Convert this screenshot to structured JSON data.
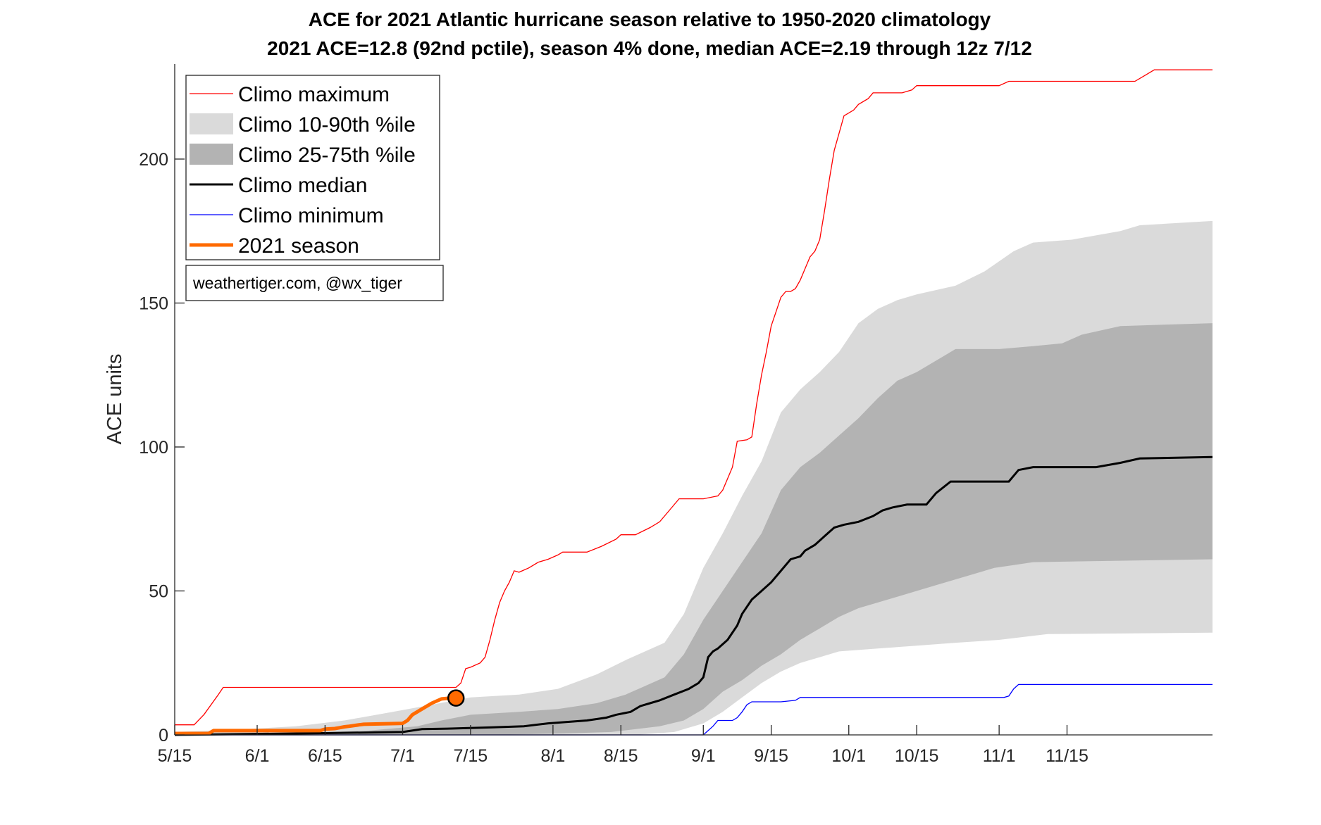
{
  "chart_data": {
    "type": "area",
    "title": "ACE for 2021 Atlantic hurricane season relative to 1950-2020 climatology",
    "subtitle": "2021 ACE=12.8 (92nd pctile), season 4% done, median ACE=2.19 through 12z 7/12",
    "xlabel": "",
    "ylabel": "ACE units",
    "xlim": [
      135,
      349
    ],
    "ylim": [
      0,
      233
    ],
    "x_ticks": [
      {
        "day": 135,
        "label": "5/15"
      },
      {
        "day": 152,
        "label": "6/1"
      },
      {
        "day": 166,
        "label": "6/15"
      },
      {
        "day": 182,
        "label": "7/1"
      },
      {
        "day": 196,
        "label": "7/15"
      },
      {
        "day": 213,
        "label": "8/1"
      },
      {
        "day": 227,
        "label": "8/15"
      },
      {
        "day": 244,
        "label": "9/1"
      },
      {
        "day": 258,
        "label": "9/15"
      },
      {
        "day": 274,
        "label": "10/1"
      },
      {
        "day": 288,
        "label": "10/15"
      },
      {
        "day": 305,
        "label": "11/1"
      },
      {
        "day": 319,
        "label": "11/15"
      }
    ],
    "y_ticks": [
      0,
      50,
      100,
      150,
      200
    ],
    "legend_position": "top-left",
    "credit": "weathertiger.com, @wx_tiger",
    "series": [
      {
        "name": "Climo maximum",
        "style": "line",
        "color": "#ff0000",
        "points": [
          [
            135,
            3.5
          ],
          [
            139,
            3.5
          ],
          [
            141,
            7
          ],
          [
            144,
            14
          ],
          [
            145,
            16.5
          ],
          [
            154,
            16.5
          ],
          [
            170,
            16.5
          ],
          [
            185,
            16.5
          ],
          [
            193,
            16.5
          ],
          [
            194,
            18
          ],
          [
            195,
            23
          ],
          [
            196,
            23.5
          ],
          [
            198,
            25
          ],
          [
            199,
            27
          ],
          [
            200,
            33
          ],
          [
            201,
            40
          ],
          [
            202,
            46
          ],
          [
            203,
            50
          ],
          [
            204,
            53
          ],
          [
            205,
            57
          ],
          [
            206,
            56.5
          ],
          [
            208,
            58
          ],
          [
            210,
            60
          ],
          [
            212,
            61
          ],
          [
            214,
            62.5
          ],
          [
            215,
            63.5
          ],
          [
            220,
            63.5
          ],
          [
            223,
            65.5
          ],
          [
            226,
            68
          ],
          [
            227,
            69.5
          ],
          [
            230,
            69.5
          ],
          [
            233,
            72
          ],
          [
            235,
            74
          ],
          [
            237,
            78
          ],
          [
            239,
            82
          ],
          [
            244,
            82
          ],
          [
            247,
            83
          ],
          [
            248,
            85
          ],
          [
            249,
            89
          ],
          [
            250,
            93
          ],
          [
            251,
            102
          ],
          [
            253,
            102.5
          ],
          [
            254,
            103.5
          ],
          [
            255,
            115
          ],
          [
            256,
            125
          ],
          [
            257,
            133
          ],
          [
            258,
            142
          ],
          [
            259,
            147
          ],
          [
            260,
            152
          ],
          [
            261,
            154
          ],
          [
            262,
            154
          ],
          [
            263,
            155
          ],
          [
            264,
            158
          ],
          [
            265,
            162
          ],
          [
            266,
            166
          ],
          [
            267,
            168
          ],
          [
            268,
            172
          ],
          [
            269,
            182
          ],
          [
            270,
            193
          ],
          [
            271,
            203
          ],
          [
            272,
            209
          ],
          [
            273,
            215
          ],
          [
            275,
            217
          ],
          [
            276,
            219
          ],
          [
            278,
            221
          ],
          [
            279,
            223
          ],
          [
            285,
            223
          ],
          [
            287,
            224
          ],
          [
            288,
            225.5
          ],
          [
            300,
            225.5
          ],
          [
            305,
            225.5
          ],
          [
            307,
            227
          ],
          [
            330,
            227
          ],
          [
            333,
            227
          ],
          [
            335,
            229
          ],
          [
            337,
            231
          ],
          [
            349,
            231
          ]
        ]
      },
      {
        "name": "Climo minimum",
        "style": "line",
        "color": "#0000ff",
        "points": [
          [
            135,
            0
          ],
          [
            244,
            0
          ],
          [
            245,
            1.5
          ],
          [
            246,
            3
          ],
          [
            247,
            5
          ],
          [
            250,
            5
          ],
          [
            251,
            6
          ],
          [
            252,
            8
          ],
          [
            253,
            10.5
          ],
          [
            254,
            11.5
          ],
          [
            260,
            11.5
          ],
          [
            263,
            12
          ],
          [
            264,
            13
          ],
          [
            300,
            13
          ],
          [
            306,
            13
          ],
          [
            307,
            13.5
          ],
          [
            308,
            16
          ],
          [
            309,
            17.5
          ],
          [
            349,
            17.5
          ]
        ]
      },
      {
        "name": "Climo median",
        "style": "line",
        "color": "#000000",
        "points": [
          [
            135,
            0
          ],
          [
            150,
            0.3
          ],
          [
            166,
            0.6
          ],
          [
            182,
            1
          ],
          [
            186,
            2
          ],
          [
            192,
            2.2
          ],
          [
            200,
            2.6
          ],
          [
            207,
            3
          ],
          [
            212,
            4
          ],
          [
            220,
            5
          ],
          [
            224,
            6
          ],
          [
            226,
            7
          ],
          [
            229,
            8
          ],
          [
            231,
            10
          ],
          [
            233,
            11
          ],
          [
            235,
            12
          ],
          [
            238,
            14
          ],
          [
            241,
            16
          ],
          [
            243,
            18
          ],
          [
            244,
            20
          ],
          [
            245,
            27
          ],
          [
            246,
            29
          ],
          [
            247,
            30
          ],
          [
            249,
            33
          ],
          [
            251,
            38
          ],
          [
            252,
            42
          ],
          [
            254,
            47
          ],
          [
            256,
            50
          ],
          [
            258,
            53
          ],
          [
            260,
            57
          ],
          [
            262,
            61
          ],
          [
            264,
            62
          ],
          [
            265,
            64
          ],
          [
            267,
            66
          ],
          [
            269,
            69
          ],
          [
            271,
            72
          ],
          [
            273,
            73
          ],
          [
            276,
            74
          ],
          [
            279,
            76
          ],
          [
            281,
            78
          ],
          [
            283,
            79
          ],
          [
            286,
            80
          ],
          [
            290,
            80
          ],
          [
            292,
            84
          ],
          [
            295,
            88
          ],
          [
            300,
            88
          ],
          [
            305,
            88
          ],
          [
            307,
            88
          ],
          [
            309,
            92
          ],
          [
            312,
            93
          ],
          [
            325,
            93
          ],
          [
            330,
            94.5
          ],
          [
            334,
            96
          ],
          [
            349,
            96.5
          ]
        ]
      },
      {
        "name": "Climo 10-90th %ile",
        "style": "band",
        "color": "#dadada",
        "lower": [
          [
            135,
            0
          ],
          [
            230,
            0
          ],
          [
            238,
            1
          ],
          [
            244,
            4
          ],
          [
            248,
            8
          ],
          [
            252,
            13
          ],
          [
            256,
            18
          ],
          [
            260,
            22
          ],
          [
            264,
            25
          ],
          [
            268,
            27
          ],
          [
            272,
            29
          ],
          [
            280,
            30
          ],
          [
            288,
            31
          ],
          [
            296,
            32
          ],
          [
            305,
            33
          ],
          [
            315,
            35
          ],
          [
            349,
            35.5
          ]
        ],
        "upper": [
          [
            135,
            1
          ],
          [
            150,
            2
          ],
          [
            160,
            3
          ],
          [
            170,
            5
          ],
          [
            180,
            8
          ],
          [
            188,
            10.5
          ],
          [
            196,
            13
          ],
          [
            206,
            14
          ],
          [
            214,
            16
          ],
          [
            222,
            21
          ],
          [
            228,
            26
          ],
          [
            232,
            29
          ],
          [
            236,
            32
          ],
          [
            240,
            42
          ],
          [
            244,
            58
          ],
          [
            248,
            70
          ],
          [
            252,
            83
          ],
          [
            256,
            95
          ],
          [
            260,
            112
          ],
          [
            264,
            120
          ],
          [
            268,
            126
          ],
          [
            272,
            133
          ],
          [
            276,
            143
          ],
          [
            280,
            148
          ],
          [
            284,
            151
          ],
          [
            288,
            153
          ],
          [
            296,
            156
          ],
          [
            302,
            161
          ],
          [
            308,
            168
          ],
          [
            312,
            171
          ],
          [
            320,
            172
          ],
          [
            330,
            175
          ],
          [
            334,
            177
          ],
          [
            349,
            178.5
          ]
        ]
      },
      {
        "name": "Climo 25-75th %ile",
        "style": "band",
        "color": "#b3b3b3",
        "lower": [
          [
            135,
            0
          ],
          [
            200,
            0
          ],
          [
            215,
            0.5
          ],
          [
            225,
            1
          ],
          [
            235,
            3
          ],
          [
            240,
            5
          ],
          [
            244,
            9
          ],
          [
            248,
            15
          ],
          [
            252,
            19
          ],
          [
            256,
            24
          ],
          [
            260,
            28
          ],
          [
            264,
            33
          ],
          [
            268,
            37
          ],
          [
            272,
            41
          ],
          [
            276,
            44
          ],
          [
            280,
            46
          ],
          [
            284,
            48
          ],
          [
            288,
            50
          ],
          [
            292,
            52
          ],
          [
            296,
            54
          ],
          [
            300,
            56
          ],
          [
            304,
            58
          ],
          [
            308,
            59
          ],
          [
            312,
            60
          ],
          [
            349,
            61
          ]
        ],
        "upper": [
          [
            135,
            0.3
          ],
          [
            160,
            0.6
          ],
          [
            175,
            1.5
          ],
          [
            185,
            3
          ],
          [
            190,
            5
          ],
          [
            196,
            7
          ],
          [
            206,
            8
          ],
          [
            214,
            9
          ],
          [
            222,
            11
          ],
          [
            228,
            14
          ],
          [
            232,
            17
          ],
          [
            236,
            20
          ],
          [
            240,
            28
          ],
          [
            244,
            40
          ],
          [
            248,
            50
          ],
          [
            252,
            60
          ],
          [
            256,
            70
          ],
          [
            260,
            85
          ],
          [
            264,
            93
          ],
          [
            268,
            98
          ],
          [
            272,
            104
          ],
          [
            276,
            110
          ],
          [
            280,
            117
          ],
          [
            284,
            123
          ],
          [
            288,
            126
          ],
          [
            292,
            130
          ],
          [
            296,
            134
          ],
          [
            300,
            134
          ],
          [
            305,
            134
          ],
          [
            312,
            135
          ],
          [
            318,
            136
          ],
          [
            322,
            139
          ],
          [
            330,
            142
          ],
          [
            349,
            143
          ]
        ]
      },
      {
        "name": "2021 season",
        "style": "line",
        "color": "#ff6a00",
        "end_marker_value": 12.8,
        "points": [
          [
            135,
            0.5
          ],
          [
            142,
            0.5
          ],
          [
            143,
            1.5
          ],
          [
            165,
            1.5
          ],
          [
            166,
            2
          ],
          [
            168,
            2.2
          ],
          [
            169,
            2.5
          ],
          [
            170,
            2.8
          ],
          [
            171,
            3
          ],
          [
            173,
            3.5
          ],
          [
            174,
            3.7
          ],
          [
            182,
            4
          ],
          [
            183,
            5
          ],
          [
            184,
            7
          ],
          [
            186,
            9
          ],
          [
            188,
            11
          ],
          [
            190,
            12.5
          ],
          [
            192,
            12.8
          ],
          [
            193,
            12.8
          ]
        ]
      }
    ]
  }
}
